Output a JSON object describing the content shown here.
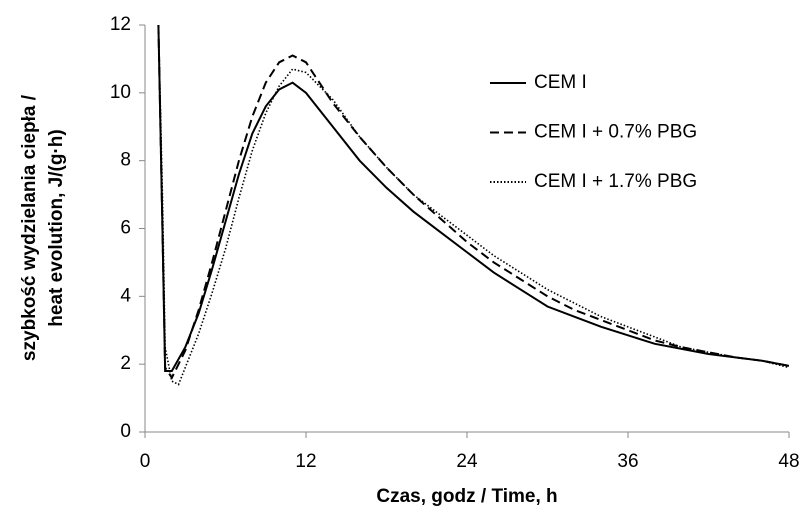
{
  "chart_data": {
    "type": "line",
    "x_label": "Czas, godz / Time, h",
    "y_label": [
      "szybkość wydzielania ciepła /",
      "heat evolution,  J/(g·h)"
    ],
    "xlim": [
      0,
      48
    ],
    "xticks": [
      0,
      12,
      24,
      36,
      48
    ],
    "ylim": [
      0,
      12
    ],
    "yticks": [
      0,
      2,
      4,
      6,
      8,
      10,
      12
    ],
    "grid": false,
    "legend": "upper right",
    "series": [
      {
        "name": "CEM I",
        "color": "#000000",
        "dash": "solid",
        "x": [
          1,
          1.3,
          1.5,
          2,
          3,
          4,
          5,
          6,
          7,
          8,
          9,
          10,
          11,
          12,
          14,
          16,
          18,
          20,
          22,
          24,
          26,
          28,
          30,
          32,
          34,
          36,
          38,
          40,
          42,
          44,
          46,
          48
        ],
        "values": [
          12,
          6,
          1.8,
          1.8,
          2.5,
          3.5,
          4.8,
          6.2,
          7.6,
          8.8,
          9.6,
          10.1,
          10.3,
          10.0,
          9.0,
          8.0,
          7.2,
          6.5,
          5.9,
          5.3,
          4.7,
          4.2,
          3.7,
          3.4,
          3.1,
          2.85,
          2.6,
          2.45,
          2.3,
          2.2,
          2.1,
          1.95
        ]
      },
      {
        "name": "CEM I + 0.7% PBG",
        "color": "#000000",
        "dash": "dashed",
        "x": [
          1,
          1.3,
          1.5,
          2,
          3,
          4,
          5,
          6,
          7,
          8,
          9,
          10,
          11,
          12,
          14,
          16,
          18,
          20,
          22,
          24,
          26,
          28,
          30,
          32,
          34,
          36,
          38,
          40,
          42,
          44,
          46,
          48
        ],
        "values": [
          12,
          6,
          1.9,
          1.6,
          2.4,
          3.6,
          5.0,
          6.5,
          8.0,
          9.3,
          10.3,
          10.9,
          11.1,
          10.9,
          9.7,
          8.7,
          7.8,
          7.0,
          6.3,
          5.6,
          5.0,
          4.5,
          4.0,
          3.6,
          3.3,
          3.0,
          2.7,
          2.5,
          2.35,
          2.2,
          2.1,
          1.95
        ]
      },
      {
        "name": "CEM I + 1.7% PBG",
        "color": "#000000",
        "dash": "dotted",
        "x": [
          1,
          1.3,
          1.5,
          2,
          2.5,
          3,
          4,
          5,
          6,
          7,
          8,
          9,
          10,
          11,
          12,
          14,
          16,
          18,
          20,
          22,
          24,
          26,
          28,
          30,
          32,
          34,
          36,
          38,
          40,
          42,
          44,
          46,
          48
        ],
        "values": [
          12,
          7,
          2.5,
          1.5,
          1.4,
          1.9,
          2.9,
          4.1,
          5.4,
          6.9,
          8.3,
          9.4,
          10.2,
          10.7,
          10.6,
          9.8,
          8.7,
          7.8,
          7.0,
          6.4,
          5.8,
          5.2,
          4.7,
          4.2,
          3.8,
          3.4,
          3.1,
          2.8,
          2.5,
          2.35,
          2.2,
          2.1,
          1.9
        ]
      }
    ]
  }
}
